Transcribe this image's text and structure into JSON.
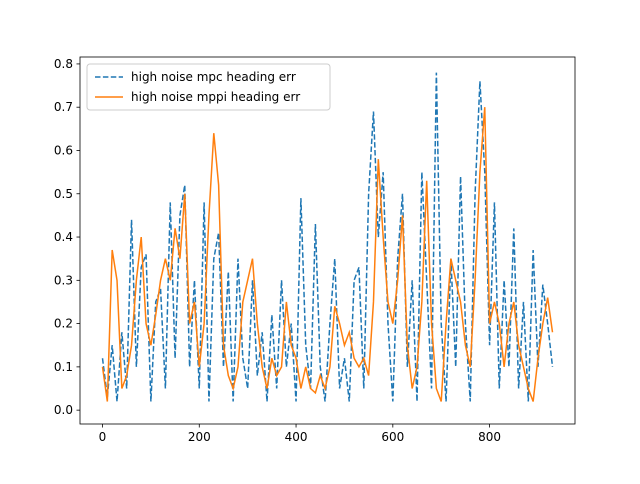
{
  "chart_data": {
    "type": "line",
    "x": [
      0,
      10,
      20,
      30,
      40,
      50,
      60,
      70,
      80,
      90,
      100,
      110,
      120,
      130,
      140,
      150,
      160,
      170,
      180,
      190,
      200,
      210,
      220,
      230,
      240,
      250,
      260,
      270,
      280,
      290,
      300,
      310,
      320,
      330,
      340,
      350,
      360,
      370,
      380,
      390,
      400,
      410,
      420,
      430,
      440,
      450,
      460,
      470,
      480,
      490,
      500,
      510,
      520,
      530,
      540,
      550,
      560,
      570,
      580,
      590,
      600,
      610,
      620,
      630,
      640,
      650,
      660,
      670,
      680,
      690,
      700,
      710,
      720,
      730,
      740,
      750,
      760,
      770,
      780,
      790,
      800,
      810,
      820,
      830,
      840,
      850,
      860,
      870,
      880,
      890,
      900,
      910,
      920,
      930
    ],
    "series": [
      {
        "name": "high noise mpc heading err",
        "color": "#1f77b4",
        "dashed": true,
        "values": [
          0.12,
          0.03,
          0.15,
          0.02,
          0.18,
          0.05,
          0.44,
          0.1,
          0.33,
          0.36,
          0.02,
          0.25,
          0.28,
          0.05,
          0.48,
          0.12,
          0.45,
          0.52,
          0.1,
          0.3,
          0.05,
          0.48,
          0.02,
          0.35,
          0.41,
          0.1,
          0.32,
          0.02,
          0.35,
          0.12,
          0.05,
          0.3,
          0.08,
          0.18,
          0.02,
          0.22,
          0.05,
          0.3,
          0.1,
          0.2,
          0.02,
          0.49,
          0.15,
          0.05,
          0.43,
          0.1,
          0.02,
          0.2,
          0.35,
          0.05,
          0.12,
          0.02,
          0.3,
          0.33,
          0.05,
          0.5,
          0.69,
          0.4,
          0.55,
          0.2,
          0.02,
          0.35,
          0.5,
          0.1,
          0.3,
          0.02,
          0.55,
          0.3,
          0.05,
          0.78,
          0.2,
          0.02,
          0.35,
          0.1,
          0.54,
          0.2,
          0.02,
          0.5,
          0.76,
          0.55,
          0.15,
          0.48,
          0.05,
          0.3,
          0.1,
          0.42,
          0.05,
          0.25,
          0.02,
          0.37,
          0.1,
          0.29,
          0.2,
          0.1
        ]
      },
      {
        "name": "high noise mppi heading err",
        "color": "#ff7f0e",
        "dashed": false,
        "values": [
          0.1,
          0.02,
          0.37,
          0.3,
          0.05,
          0.08,
          0.15,
          0.3,
          0.4,
          0.2,
          0.15,
          0.22,
          0.3,
          0.35,
          0.3,
          0.42,
          0.35,
          0.5,
          0.2,
          0.25,
          0.1,
          0.2,
          0.45,
          0.64,
          0.52,
          0.15,
          0.08,
          0.05,
          0.1,
          0.25,
          0.3,
          0.35,
          0.2,
          0.1,
          0.05,
          0.12,
          0.08,
          0.1,
          0.25,
          0.15,
          0.12,
          0.05,
          0.1,
          0.05,
          0.04,
          0.08,
          0.05,
          0.1,
          0.24,
          0.2,
          0.15,
          0.18,
          0.12,
          0.1,
          0.12,
          0.08,
          0.25,
          0.58,
          0.4,
          0.25,
          0.2,
          0.3,
          0.45,
          0.15,
          0.05,
          0.1,
          0.25,
          0.53,
          0.2,
          0.05,
          0.02,
          0.2,
          0.35,
          0.3,
          0.25,
          0.15,
          0.1,
          0.3,
          0.55,
          0.7,
          0.2,
          0.25,
          0.2,
          0.1,
          0.2,
          0.25,
          0.15,
          0.1,
          0.05,
          0.02,
          0.12,
          0.2,
          0.26,
          0.18
        ]
      }
    ],
    "xlim": [
      -46.5,
      976.5
    ],
    "xticks": [
      0,
      200,
      400,
      600,
      800
    ],
    "ylim": [
      -0.032,
      0.816
    ],
    "yticks": [
      {
        "value": 0,
        "label": "0.0"
      },
      0.1,
      0.2,
      0.3,
      0.4,
      0.5,
      0.6,
      0.7,
      0.8
    ],
    "legend": "upper left"
  }
}
